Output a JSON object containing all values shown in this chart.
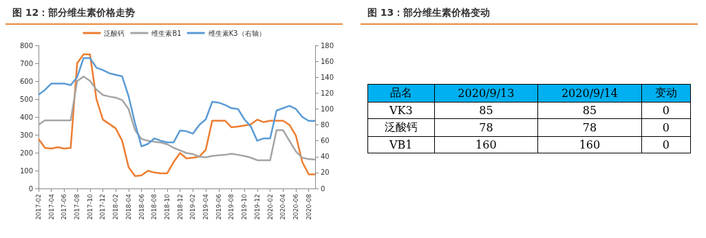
{
  "chart_data": [
    {
      "type": "line",
      "title": "图 12：部分维生素价格走势",
      "categories": [
        "2017-02",
        null,
        "2017-04",
        null,
        "2017-06",
        null,
        "2017-08",
        null,
        "2017-10",
        null,
        "2017-12",
        null,
        "2018-02",
        null,
        "2018-04",
        null,
        "2018-06",
        null,
        "2018-08",
        null,
        "2018-10",
        null,
        "2018-12",
        null,
        "2019-02",
        null,
        "2019-04",
        null,
        "2019-06",
        null,
        "2019-08",
        null,
        "2019-10",
        null,
        "2019-12",
        null,
        "2020-02",
        null,
        "2020-04",
        null,
        "2020-06",
        null,
        "2020-08",
        null
      ],
      "series": [
        {
          "name": "泛酸钙",
          "color": "#ed7d31",
          "values": [
            277,
            227,
            223,
            231,
            223,
            227,
            700,
            750,
            750,
            500,
            385,
            361,
            336,
            267,
            119,
            69,
            73,
            99,
            89,
            85,
            85,
            148,
            198,
            168,
            172,
            178,
            217,
            379,
            379,
            379,
            342,
            346,
            352,
            359,
            385,
            371,
            379,
            379,
            379,
            356,
            296,
            148,
            79,
            79
          ]
        },
        {
          "name": "维生素B1",
          "color": "#a5a5a5",
          "values": [
            356,
            381,
            381,
            381,
            381,
            381,
            600,
            626,
            602,
            553,
            523,
            514,
            508,
            494,
            444,
            326,
            277,
            267,
            261,
            257,
            247,
            227,
            213,
            198,
            192,
            178,
            174,
            182,
            186,
            188,
            194,
            188,
            182,
            172,
            158,
            158,
            158,
            326,
            326,
            267,
            207,
            172,
            164,
            162
          ]
        },
        {
          "name": "维生素K3（右轴）",
          "color": "#5b9bd5",
          "axis": "y2",
          "values": [
            118,
            124,
            132,
            132,
            132,
            130,
            140,
            164,
            164,
            152,
            149,
            145,
            143,
            141,
            116,
            82,
            53,
            56,
            63,
            60,
            58,
            58,
            73,
            72,
            69,
            80,
            87,
            109,
            108,
            105,
            101,
            100,
            87,
            78,
            60,
            63,
            63,
            98,
            101,
            104,
            100,
            90,
            85,
            85
          ]
        }
      ],
      "ylim": [
        0,
        800
      ],
      "yticks": [
        0,
        100,
        200,
        300,
        400,
        500,
        600,
        700,
        800
      ],
      "y2lim": [
        0,
        180
      ],
      "y2ticks": [
        0,
        20,
        40,
        60,
        80,
        100,
        120,
        140,
        160,
        180
      ],
      "legend": "top",
      "grid": false,
      "marker": "none",
      "line_style": "solid"
    },
    {
      "type": "heatmap",
      "title": "图 13：部分维生素价格变动",
      "ylabel": "品名",
      "data_labels": true,
      "categories": [
        "2020/9/13",
        "2020/9/14",
        "变动"
      ],
      "y_categories": [
        "VK3",
        "泛酸钙",
        "VB1"
      ],
      "cells": [
        [
          85,
          85,
          0
        ],
        [
          78,
          78,
          0
        ],
        [
          160,
          160,
          0
        ]
      ]
    }
  ]
}
